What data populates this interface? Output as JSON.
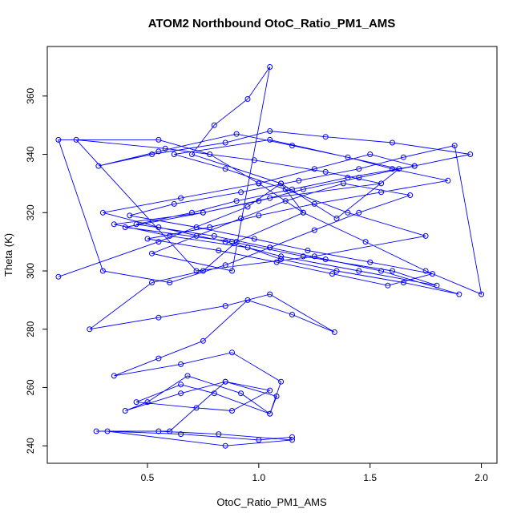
{
  "chart_data": {
    "type": "line",
    "title": "ATOM2 Northbound OtoC_Ratio_PM1_AMS",
    "xlabel": "OtoC_Ratio_PM1_AMS",
    "ylabel": "Theta (K)",
    "xlim": [
      0.05,
      2.07
    ],
    "ylim": [
      234,
      377
    ],
    "xticks": [
      "0.5",
      "1.0",
      "1.5",
      "2.0"
    ],
    "xtick_values": [
      0.5,
      1.0,
      1.5,
      2.0
    ],
    "yticks": [
      "240",
      "260",
      "280",
      "300",
      "320",
      "340",
      "360"
    ],
    "ytick_values": [
      240,
      260,
      280,
      300,
      320,
      340,
      360
    ],
    "grid": false,
    "series": [
      {
        "color": "#0000ff",
        "marker": "open-circle",
        "x": [
          0.1,
          0.55,
          0.95,
          1.1,
          1.35,
          1.63,
          1.05,
          0.62,
          0.85,
          1.12,
          1.4,
          1.75,
          1.25,
          0.72,
          0.18,
          0.58,
          0.98,
          1.3,
          1.55,
          1.05,
          0.75,
          0.4,
          0.88,
          1.2,
          1.6,
          1.8,
          1.45,
          1.1,
          0.85,
          0.55,
          0.3,
          0.65,
          1.0,
          1.25,
          1.5,
          1.7,
          1.4,
          1.15,
          0.9,
          0.7,
          0.45,
          0.8,
          1.05,
          1.3,
          1.55,
          1.9,
          1.65,
          1.35,
          1.1,
          0.95,
          0.6,
          0.35,
          0.75,
          1.0,
          1.2,
          1.45,
          1.7,
          1.95,
          1.6,
          1.3,
          1.05,
          0.85,
          0.52,
          0.28,
          0.55,
          0.9,
          1.15,
          1.4,
          1.6,
          1.85,
          1.55,
          1.25,
          1.0,
          0.78,
          0.5,
          0.82,
          1.08,
          1.33,
          1.58,
          1.78,
          1.5,
          1.22,
          0.98,
          0.72,
          0.42,
          0.62,
          0.92,
          1.18,
          1.45,
          1.65,
          1.88,
          2.0,
          1.75,
          1.48,
          1.2,
          1.0,
          0.78,
          0.55,
          0.1,
          0.3,
          0.6,
          0.85,
          1.05,
          1.25,
          1.45,
          1.68,
          1.38,
          1.12,
          0.92,
          0.72,
          0.52,
          0.88,
          1.05,
          0.95,
          0.8,
          0.7,
          1.1,
          1.2,
          0.9,
          0.75,
          0.52,
          0.24,
          0.55,
          0.85,
          1.05,
          1.34,
          1.15,
          0.95,
          0.75,
          0.55,
          0.35,
          0.65,
          0.88,
          1.1,
          1.05,
          0.92,
          0.68,
          0.5,
          0.4,
          0.65,
          0.85,
          1.08,
          1.05,
          0.8,
          0.65,
          0.45,
          0.72,
          0.88,
          1.05,
          0.85,
          0.6,
          0.27,
          0.55,
          0.82,
          1.15,
          0.85,
          0.32,
          0.65,
          1.0,
          1.15
        ],
        "y": [
          298,
          310,
          322,
          330,
          318,
          335,
          345,
          340,
          335,
          328,
          320,
          312,
          305,
          300,
          345,
          342,
          338,
          334,
          330,
          325,
          320,
          315,
          310,
          305,
          300,
          295,
          300,
          305,
          310,
          315,
          320,
          325,
          330,
          335,
          340,
          336,
          332,
          328,
          324,
          320,
          316,
          312,
          308,
          304,
          300,
          292,
          296,
          300,
          304,
          308,
          312,
          316,
          320,
          324,
          328,
          332,
          336,
          340,
          344,
          346,
          348,
          344,
          340,
          336,
          341,
          347,
          343,
          339,
          335,
          331,
          327,
          323,
          319,
          315,
          311,
          307,
          303,
          299,
          295,
          299,
          303,
          307,
          311,
          315,
          319,
          323,
          327,
          331,
          335,
          339,
          343,
          292,
          300,
          310,
          320,
          330,
          340,
          345,
          345,
          300,
          296,
          302,
          308,
          314,
          320,
          326,
          330,
          324,
          318,
          312,
          306,
          300,
          370,
          359,
          350,
          340,
          330,
          320,
          310,
          300,
          296,
          280,
          284,
          288,
          292,
          279,
          285,
          290,
          276,
          270,
          264,
          268,
          272,
          262,
          251,
          258,
          264,
          255,
          252,
          258,
          262,
          257,
          251,
          258,
          261,
          255,
          253,
          252,
          259,
          262,
          245,
          245,
          245,
          244,
          242,
          240,
          245,
          244,
          242,
          243
        ]
      }
    ]
  }
}
